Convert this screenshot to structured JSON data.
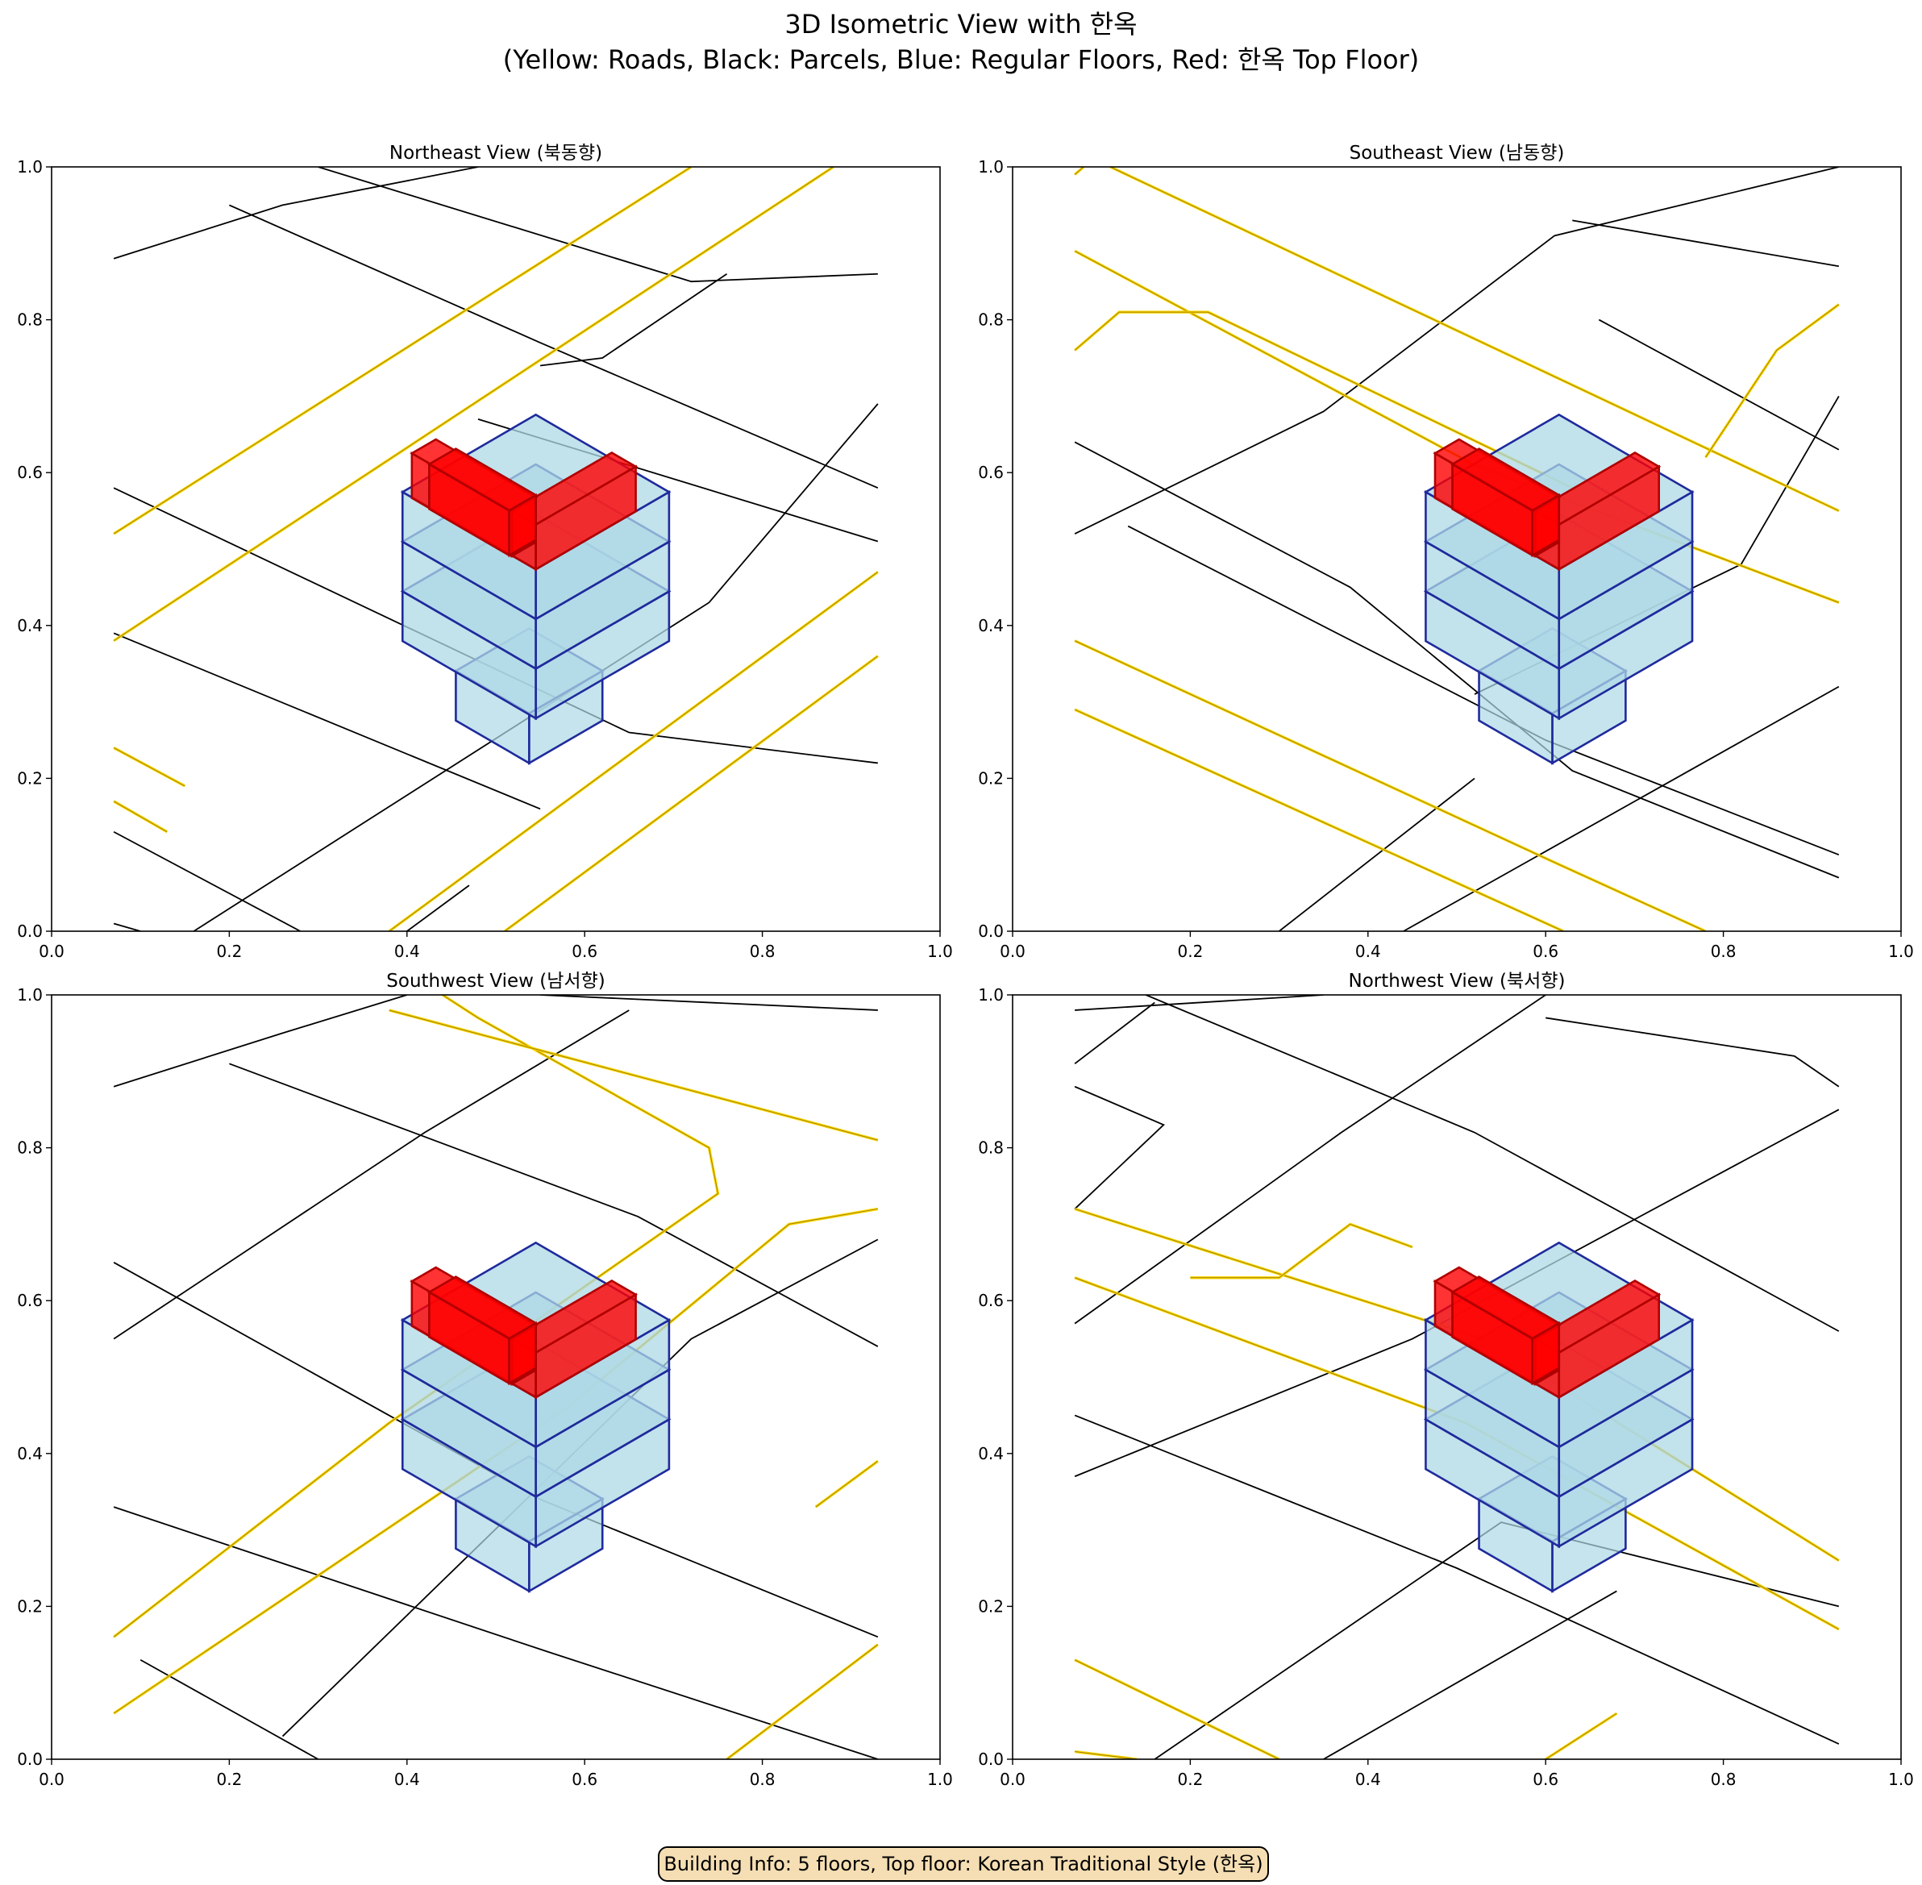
{
  "figure": {
    "title_line1": "3D Isometric View with 한옥",
    "title_line2": "(Yellow: Roads, Black: Parcels, Blue: Regular Floors, Red: 한옥 Top Floor)"
  },
  "info_box": "Building Info: 5 floors, Top floor: Korean Traditional Style (한옥)",
  "colors": {
    "road": "#FFD700",
    "road_edge": "#5a4a00",
    "parcel": "#000000",
    "floor_fill": "#add8e6",
    "floor_edge": "#1f2a9c",
    "hanok_fill": "#ff0000",
    "hanok_edge": "#b00000"
  },
  "chart_data": [
    {
      "type": "diagram",
      "title": "Northeast View (북동향)",
      "xlim": [
        0,
        1
      ],
      "ylim": [
        0,
        1
      ],
      "xticks": [
        "0.0",
        "0.2",
        "0.4",
        "0.6",
        "0.8",
        "1.0"
      ],
      "yticks": [
        "0.0",
        "0.2",
        "0.4",
        "0.6",
        "0.8",
        "1.0"
      ]
    },
    {
      "type": "diagram",
      "title": "Southeast View (남동향)",
      "xlim": [
        0,
        1
      ],
      "ylim": [
        0,
        1
      ],
      "xticks": [
        "0.0",
        "0.2",
        "0.4",
        "0.6",
        "0.8",
        "1.0"
      ],
      "yticks": [
        "0.0",
        "0.2",
        "0.4",
        "0.6",
        "0.8",
        "1.0"
      ]
    },
    {
      "type": "diagram",
      "title": "Southwest View (남서향)",
      "xlim": [
        0,
        1
      ],
      "ylim": [
        0,
        1
      ],
      "xticks": [
        "0.0",
        "0.2",
        "0.4",
        "0.6",
        "0.8",
        "1.0"
      ],
      "yticks": [
        "0.0",
        "0.2",
        "0.4",
        "0.6",
        "0.8",
        "1.0"
      ]
    },
    {
      "type": "diagram",
      "title": "Northwest View (북서향)",
      "xlim": [
        0,
        1
      ],
      "ylim": [
        0,
        1
      ],
      "xticks": [
        "0.0",
        "0.2",
        "0.4",
        "0.6",
        "0.8",
        "1.0"
      ],
      "yticks": [
        "0.0",
        "0.2",
        "0.4",
        "0.6",
        "0.8",
        "1.0"
      ]
    }
  ]
}
